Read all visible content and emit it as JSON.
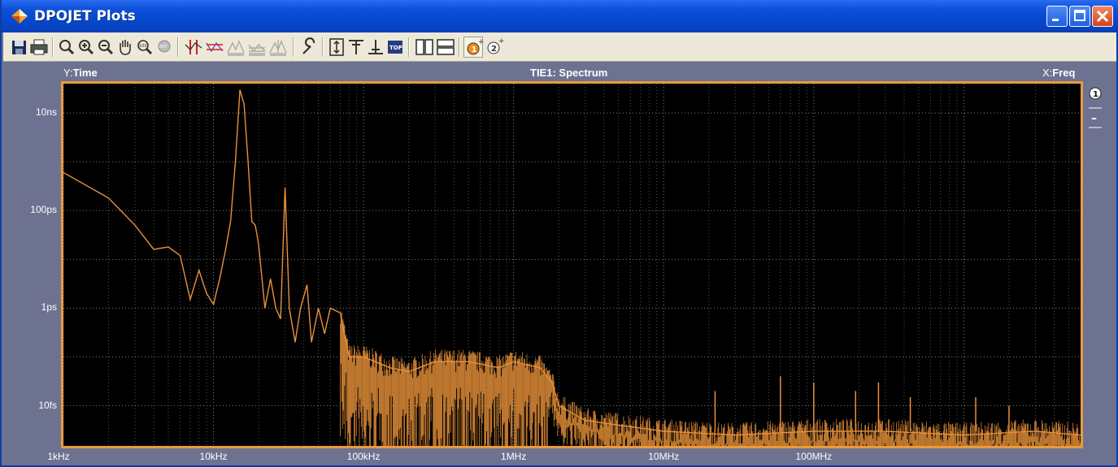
{
  "window": {
    "title": "DPOJET Plots",
    "accent": "#0646cc"
  },
  "toolbar": {
    "icons": [
      "save-icon",
      "print-icon",
      "zoom-icon",
      "zoom-in-icon",
      "zoom-out-icon",
      "pan-hand-icon",
      "zoom-100-icon",
      "zoom-reset-icon",
      "cursor-vertical-icon",
      "cursor-waveform-icon",
      "reset-cursor-icon",
      "reset-icon",
      "sync-icon",
      "wrench-icon",
      "vertical-scale-icon",
      "top-marker-icon",
      "bottom-marker-icon",
      "top-icon",
      "split-vertical-icon",
      "split-horizontal-icon",
      "cursor-1-add-icon",
      "cursor-2-add-icon"
    ],
    "top_label": "TOP",
    "cursor1": "1",
    "cursor2": "2"
  },
  "plot": {
    "y_axis_prefix": "Y:",
    "y_axis_name": "Time",
    "title": "TIE1: Spectrum",
    "x_axis_prefix": "X:",
    "x_axis_name": "Freq",
    "cursor_badge": "1",
    "cursor_minus": "–"
  },
  "chart_data": {
    "type": "line",
    "title": "TIE1: Spectrum",
    "xlabel": "Freq",
    "ylabel": "Time",
    "x_scale": "log",
    "y_scale": "log",
    "xlim": [
      1000,
      6000000000
    ],
    "ylim_seconds": [
      1.5e-15,
      4e-08
    ],
    "x_tick_labels": [
      "1kHz",
      "10kHz",
      "100kHz",
      "1MHz",
      "10MHz",
      "100MHz"
    ],
    "x_tick_values": [
      1000,
      10000,
      100000,
      1000000,
      10000000,
      100000000
    ],
    "y_tick_labels": [
      "10ns",
      "100ps",
      "1ps",
      "10fs"
    ],
    "y_tick_values": [
      1e-08,
      1e-10,
      1e-12,
      1e-14
    ],
    "grid": true,
    "series": [
      {
        "color": "#e8913a",
        "points": [
          [
            1000,
            6e-10
          ],
          [
            2000,
            1.8e-10
          ],
          [
            3000,
            5e-11
          ],
          [
            4000,
            1.6e-11
          ],
          [
            5000,
            1.8e-11
          ],
          [
            6000,
            1.2e-11
          ],
          [
            7000,
            1.5e-12
          ],
          [
            8000,
            6e-12
          ],
          [
            9000,
            2e-12
          ],
          [
            10000,
            1.2e-12
          ],
          [
            11000,
            4e-12
          ],
          [
            12000,
            1.5e-11
          ],
          [
            13000,
            6e-11
          ],
          [
            14000,
            1e-09
          ],
          [
            15000,
            3e-08
          ],
          [
            16000,
            1.5e-08
          ],
          [
            17000,
            1e-09
          ],
          [
            18000,
            6e-11
          ],
          [
            19000,
            5e-11
          ],
          [
            20000,
            2e-11
          ],
          [
            22000,
            1e-12
          ],
          [
            24000,
            4e-12
          ],
          [
            26000,
            1e-12
          ],
          [
            28000,
            6e-13
          ],
          [
            30000,
            3e-10
          ],
          [
            32000,
            1e-12
          ],
          [
            35000,
            2e-13
          ],
          [
            38000,
            1e-12
          ],
          [
            42000,
            3e-12
          ],
          [
            45000,
            2e-13
          ],
          [
            50000,
            1e-12
          ],
          [
            55000,
            3e-13
          ],
          [
            60000,
            1e-12
          ],
          [
            70000,
            8e-13
          ],
          [
            80000,
            1e-13
          ],
          [
            100000,
            1e-13
          ],
          [
            150000,
            6e-14
          ],
          [
            200000,
            5e-14
          ],
          [
            300000,
            8e-14
          ],
          [
            500000,
            8e-14
          ],
          [
            800000,
            6e-14
          ],
          [
            1000000,
            8e-14
          ],
          [
            1500000,
            6e-14
          ],
          [
            1800000,
            3e-14
          ],
          [
            2000000,
            1e-14
          ],
          [
            3000000,
            5e-15
          ],
          [
            5000000,
            4e-15
          ],
          [
            10000000,
            3e-15
          ],
          [
            30000000,
            2.5e-15
          ],
          [
            100000000,
            3e-15
          ],
          [
            300000000,
            3e-15
          ],
          [
            1000000000,
            2.5e-15
          ],
          [
            3000000000,
            3e-15
          ],
          [
            6000000000,
            2.5e-15
          ]
        ]
      }
    ]
  }
}
